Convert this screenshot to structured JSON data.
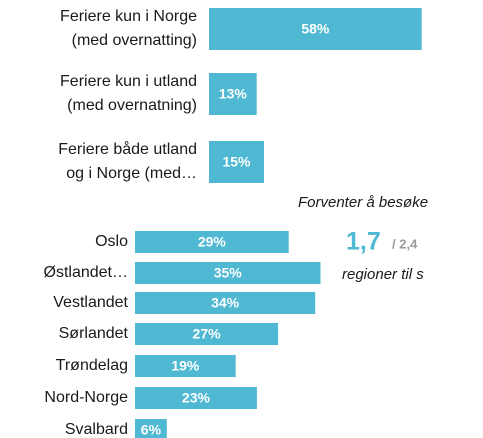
{
  "chart_data": [
    {
      "type": "bar",
      "orientation": "horizontal",
      "color": "#4fb8d3",
      "categories": [
        [
          "Feriere kun i Norge",
          "(med overnatting)"
        ],
        [
          "Feriere kun i utland",
          "(med overnatning)"
        ],
        [
          "Feriere både utland",
          "og i Norge (med…"
        ]
      ],
      "values": [
        58,
        13,
        15
      ],
      "value_labels": [
        "58%",
        "13%",
        "15%"
      ],
      "xlim": [
        0,
        60
      ]
    },
    {
      "type": "bar",
      "orientation": "horizontal",
      "color": "#4fb8d3",
      "categories": [
        "Oslo",
        "Østlandet…",
        "Vestlandet",
        "Sørlandet",
        "Trøndelag",
        "Nord-Norge",
        "Svalbard"
      ],
      "values": [
        29,
        35,
        34,
        27,
        19,
        23,
        6
      ],
      "value_labels": [
        "29%",
        "35%",
        "34%",
        "27%",
        "19%",
        "23%",
        "6%"
      ],
      "xlim": [
        0,
        40
      ],
      "annotations": [
        "Forventer å besøke",
        "1,7",
        "/ 2,4",
        "regioner til s"
      ]
    }
  ]
}
